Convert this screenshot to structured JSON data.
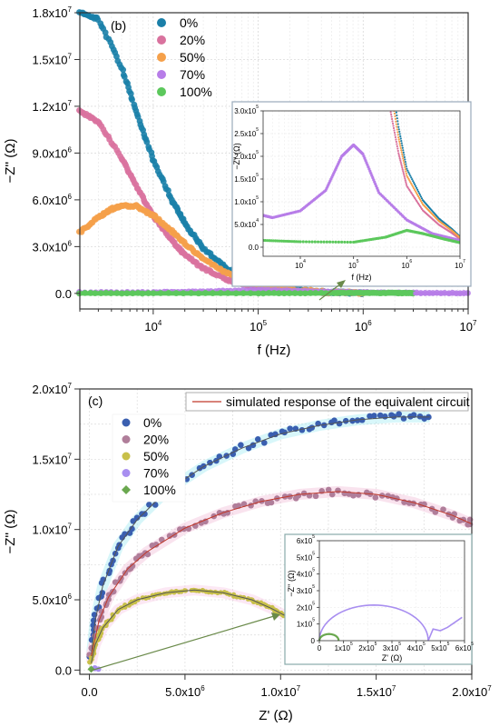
{
  "panel_b": {
    "label": "(b)",
    "xlabel": "f (Hz)",
    "ylabel": "−Z'' (Ω)",
    "x_ticks": [
      {
        "base": "10",
        "exp": "4",
        "value": 10000
      },
      {
        "base": "10",
        "exp": "5",
        "value": 100000
      },
      {
        "base": "10",
        "exp": "6",
        "value": 1000000
      },
      {
        "base": "10",
        "exp": "7",
        "value": 10000000
      }
    ],
    "y_ticks": [
      {
        "mant": "0.0",
        "exp": "",
        "value": 0
      },
      {
        "mant": "3.0x10",
        "exp": "6",
        "value": 3000000
      },
      {
        "mant": "6.0x10",
        "exp": "6",
        "value": 6000000
      },
      {
        "mant": "9.0x10",
        "exp": "6",
        "value": 9000000
      },
      {
        "mant": "1.2x10",
        "exp": "7",
        "value": 12000000
      },
      {
        "mant": "1.5x10",
        "exp": "7",
        "value": 15000000
      },
      {
        "mant": "1.8x10",
        "exp": "7",
        "value": 18000000
      }
    ],
    "inset": {
      "xlabel": "f (Hz)",
      "ylabel": "−Z'' (Ω)",
      "x_ticks": [
        {
          "base": "10",
          "exp": "4",
          "value": 10000
        },
        {
          "base": "10",
          "exp": "5",
          "value": 100000
        },
        {
          "base": "10",
          "exp": "6",
          "value": 1000000
        },
        {
          "base": "10",
          "exp": "7",
          "value": 10000000
        }
      ],
      "y_ticks": [
        {
          "mant": "0.0",
          "exp": "",
          "value": 0
        },
        {
          "mant": "5.0x10",
          "exp": "4",
          "value": 50000
        },
        {
          "mant": "1.0x10",
          "exp": "5",
          "value": 100000
        },
        {
          "mant": "1.5x10",
          "exp": "5",
          "value": 150000
        },
        {
          "mant": "2.0x10",
          "exp": "5",
          "value": 200000
        },
        {
          "mant": "2.5x10",
          "exp": "5",
          "value": 250000
        },
        {
          "mant": "3.0x10",
          "exp": "5",
          "value": 300000
        }
      ]
    }
  },
  "panel_c": {
    "label": "(c)",
    "xlabel": "Z' (Ω)",
    "ylabel": "−Z'' (Ω)",
    "fit_legend": "simulated response of the equivalent circuit",
    "x_ticks": [
      {
        "mant": "0.0",
        "exp": "",
        "value": 0
      },
      {
        "mant": "5.0x10",
        "exp": "6",
        "value": 5000000
      },
      {
        "mant": "1.0x10",
        "exp": "7",
        "value": 10000000
      },
      {
        "mant": "1.5x10",
        "exp": "7",
        "value": 15000000
      },
      {
        "mant": "2.0x10",
        "exp": "7",
        "value": 20000000
      }
    ],
    "y_ticks": [
      {
        "mant": "0.0",
        "exp": "",
        "value": 0
      },
      {
        "mant": "5.0x10",
        "exp": "6",
        "value": 5000000
      },
      {
        "mant": "1.0x10",
        "exp": "7",
        "value": 10000000
      },
      {
        "mant": "1.5x10",
        "exp": "7",
        "value": 15000000
      },
      {
        "mant": "2.0x10",
        "exp": "7",
        "value": 20000000
      }
    ],
    "inset": {
      "xlabel": "Z' (Ω)",
      "ylabel": "−Z'' (Ω)",
      "x_ticks": [
        {
          "mant": "0",
          "exp": "",
          "value": 0
        },
        {
          "mant": "1x10",
          "exp": "5",
          "value": 100000
        },
        {
          "mant": "2x10",
          "exp": "5",
          "value": 200000
        },
        {
          "mant": "3x10",
          "exp": "5",
          "value": 300000
        },
        {
          "mant": "4x10",
          "exp": "5",
          "value": 400000
        },
        {
          "mant": "5x10",
          "exp": "5",
          "value": 500000
        },
        {
          "mant": "6x10",
          "exp": "5",
          "value": 600000
        }
      ],
      "y_ticks": [
        {
          "mant": "0",
          "exp": "",
          "value": 0
        },
        {
          "mant": "1x10",
          "exp": "5",
          "value": 100000
        },
        {
          "mant": "2x10",
          "exp": "5",
          "value": 200000
        },
        {
          "mant": "3x10",
          "exp": "5",
          "value": 300000
        },
        {
          "mant": "4x10",
          "exp": "5",
          "value": 400000
        },
        {
          "mant": "5x10",
          "exp": "5",
          "value": 500000
        },
        {
          "mant": "6x10",
          "exp": "5",
          "value": 600000
        }
      ]
    }
  },
  "chart_data": [
    {
      "type": "scatter",
      "panel": "(b)",
      "xlabel": "f (Hz)",
      "ylabel": "−Z'' (Ω)",
      "xscale": "log",
      "xlim": [
        2000,
        10000000
      ],
      "ylim": [
        -1000000,
        18000000
      ],
      "grid": true,
      "legend_position": "top-center",
      "series": [
        {
          "name": "0%",
          "color": "#1a7fa8",
          "x": [
            2000,
            3000,
            5000,
            7000,
            10000,
            15000,
            20000,
            30000,
            50000,
            70000,
            100000,
            200000,
            300000,
            500000,
            700000,
            1000000
          ],
          "y": [
            18000000,
            17600000,
            14500000,
            11500000,
            8600000,
            6000000,
            4500000,
            2900000,
            1600000,
            1050000,
            700000,
            300000,
            160000,
            80000,
            50000,
            20000
          ]
        },
        {
          "name": "20%",
          "color": "#d9729e",
          "x": [
            2000,
            3000,
            5000,
            7000,
            10000,
            15000,
            20000,
            30000,
            50000,
            70000,
            100000,
            200000,
            500000,
            1000000
          ],
          "y": [
            11700000,
            11000000,
            8700000,
            6800000,
            5000000,
            3400000,
            2500000,
            1600000,
            900000,
            600000,
            400000,
            150000,
            50000,
            20000
          ]
        },
        {
          "name": "50%",
          "color": "#f5a04a",
          "x": [
            2000,
            3000,
            4000,
            5000,
            7000,
            10000,
            15000,
            20000,
            30000,
            50000,
            70000,
            100000,
            200000,
            500000,
            1000000
          ],
          "y": [
            3900000,
            4900000,
            5400000,
            5600000,
            5600000,
            5000000,
            4000000,
            3200000,
            2200000,
            1300000,
            900000,
            600000,
            250000,
            80000,
            30000
          ]
        },
        {
          "name": "70%",
          "color": "#b77de8",
          "x": [
            2000,
            10000,
            30000,
            100000,
            300000,
            1000000,
            3000000,
            10000000
          ],
          "y": [
            65000,
            75000,
            120000,
            225000,
            140000,
            70000,
            30000,
            10000
          ]
        },
        {
          "name": "100%",
          "color": "#5cc85c",
          "x": [
            2000,
            10000,
            100000,
            500000,
            1000000,
            2000000,
            3000000
          ],
          "y": [
            15000,
            12000,
            12000,
            25000,
            38000,
            25000,
            15000
          ]
        }
      ],
      "inset": {
        "xscale": "log",
        "xlim": [
          2000,
          10000000
        ],
        "ylim": [
          -20000,
          300000
        ],
        "series": [
          "0%",
          "20%",
          "50%",
          "70%",
          "100%"
        ]
      }
    },
    {
      "type": "scatter",
      "panel": "(c)",
      "xlabel": "Z' (Ω)",
      "ylabel": "−Z'' (Ω)",
      "xlim": [
        -500000,
        20000000
      ],
      "ylim": [
        -300000,
        20000000
      ],
      "grid": true,
      "legend_position": "top-left",
      "series": [
        {
          "name": "0%",
          "color": "#3a5fb0",
          "marker": "circle",
          "x": [
            100000,
            300000,
            700000,
            1500000,
            2500000,
            4000000,
            6000000,
            8000000,
            10000000,
            12000000,
            14000000,
            16000000,
            17800000
          ],
          "y": [
            1000000,
            3500000,
            6000000,
            8800000,
            10700000,
            12700000,
            14500000,
            15800000,
            16800000,
            17400000,
            17800000,
            18000000,
            18000000
          ]
        },
        {
          "name": "20%",
          "color": "#b07e9a",
          "marker": "circle",
          "x": [
            100000,
            500000,
            1000000,
            2000000,
            3000000,
            5000000,
            7000000,
            9000000,
            11000000,
            13000000,
            15000000,
            17000000,
            19000000,
            20000000
          ],
          "y": [
            1000000,
            3500000,
            5200000,
            7200000,
            8400000,
            10100000,
            11200000,
            12000000,
            12500000,
            12700000,
            12500000,
            11900000,
            11000000,
            10400000
          ]
        },
        {
          "name": "50%",
          "color": "#c8c04a",
          "marker": "circle",
          "x": [
            100000,
            300000,
            700000,
            1500000,
            2500000,
            4000000,
            5500000,
            7000000,
            8500000,
            9500000,
            10200000
          ],
          "y": [
            500000,
            1800000,
            3000000,
            4300000,
            5000000,
            5500000,
            5700000,
            5500000,
            5000000,
            4400000,
            3900000
          ]
        },
        {
          "name": "70%",
          "color": "#a88ef0",
          "marker": "circle",
          "x": [
            0,
            200000,
            450000,
            550000,
            600000
          ],
          "y": [
            0,
            210000,
            70000,
            100000,
            150000
          ]
        },
        {
          "name": "100%",
          "color": "#6aa84f",
          "marker": "diamond",
          "x": [
            0,
            30000,
            60000,
            80000
          ],
          "y": [
            0,
            40000,
            30000,
            0
          ]
        }
      ],
      "fit_series": {
        "name": "simulated response of the equivalent circuit",
        "color": "#c0392b"
      },
      "inset": {
        "xlim": [
          0,
          600000
        ],
        "ylim": [
          0,
          600000
        ],
        "series": [
          "70%",
          "100%"
        ]
      }
    }
  ]
}
